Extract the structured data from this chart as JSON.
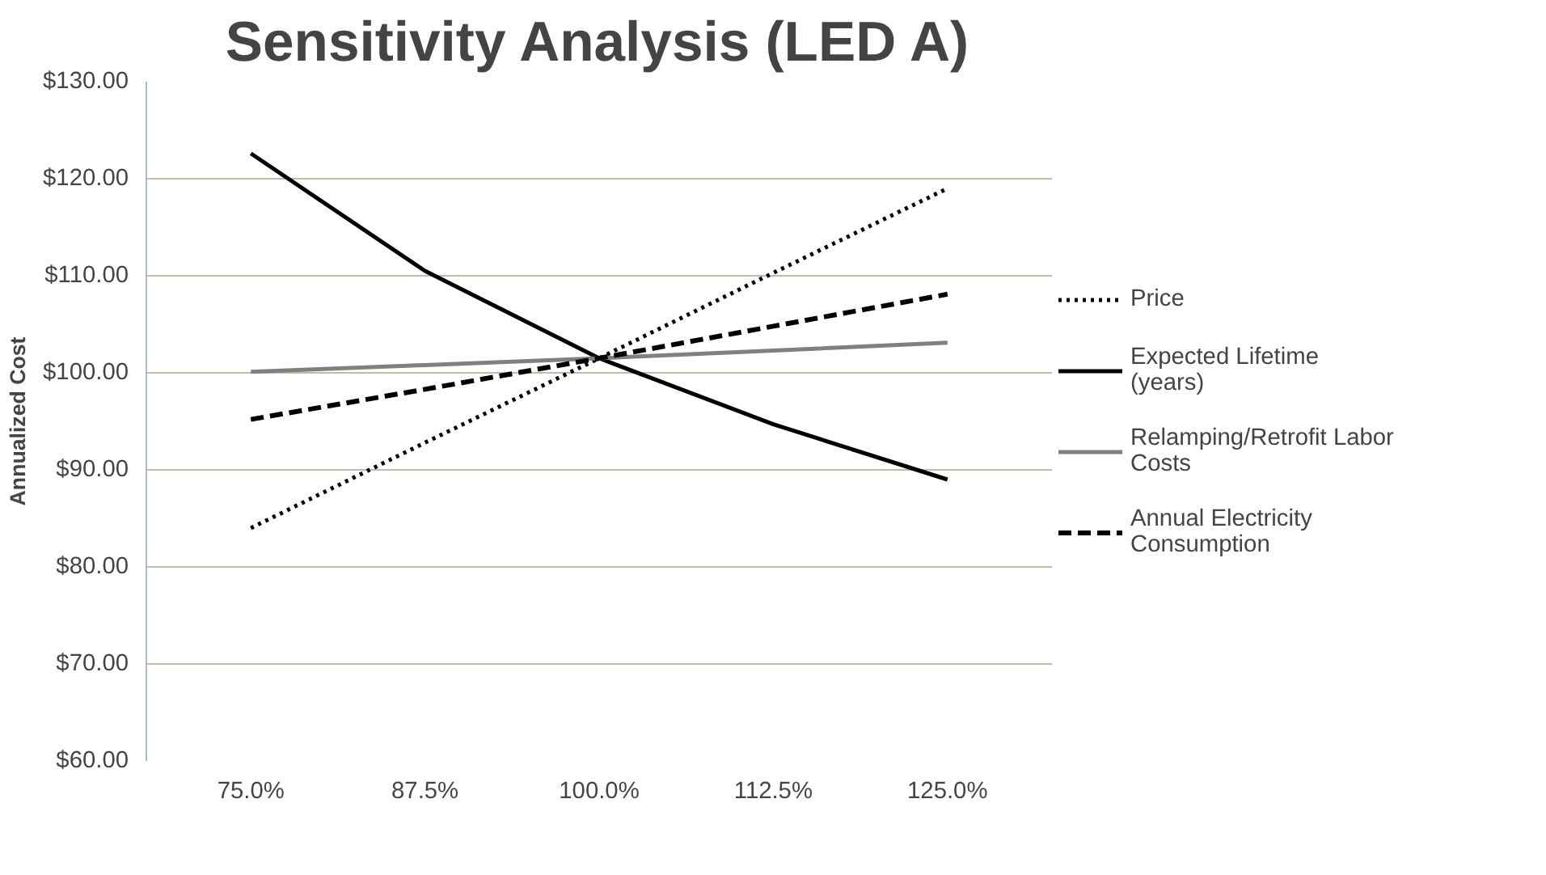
{
  "chart_data": {
    "type": "line",
    "title": "Sensitivity Analysis (LED A)",
    "ylabel": "Annualized Cost",
    "categories": [
      "75.0%",
      "87.5%",
      "100.0%",
      "112.5%",
      "125.0%"
    ],
    "series": [
      {
        "name": "Price",
        "color": "#000000",
        "line_style": "dotted",
        "values": [
          84.0,
          92.8,
          101.5,
          110.3,
          119.0
        ]
      },
      {
        "name": "Expected Lifetime (years)",
        "color": "#000000",
        "line_style": "solid",
        "values": [
          122.6,
          110.5,
          101.5,
          94.7,
          89.0
        ]
      },
      {
        "name": "Relamping/Retrofit Labor Costs",
        "color": "#808080",
        "line_style": "solid",
        "values": [
          100.1,
          100.8,
          101.5,
          102.3,
          103.1
        ]
      },
      {
        "name": "Annual Electricity Consumption",
        "color": "#000000",
        "line_style": "dashed",
        "values": [
          95.2,
          98.3,
          101.5,
          104.8,
          108.1
        ]
      }
    ],
    "ylim": [
      60,
      130
    ],
    "yticks": [
      {
        "value": 60,
        "label": "$60.00"
      },
      {
        "value": 70,
        "label": "$70.00"
      },
      {
        "value": 80,
        "label": "$80.00"
      },
      {
        "value": 90,
        "label": "$90.00"
      },
      {
        "value": 100,
        "label": "$100.00"
      },
      {
        "value": 110,
        "label": "$110.00"
      },
      {
        "value": 120,
        "label": "$120.00"
      },
      {
        "value": 130,
        "label": "$130.00"
      }
    ],
    "grid": "y",
    "legend": "right",
    "marker": "none"
  }
}
